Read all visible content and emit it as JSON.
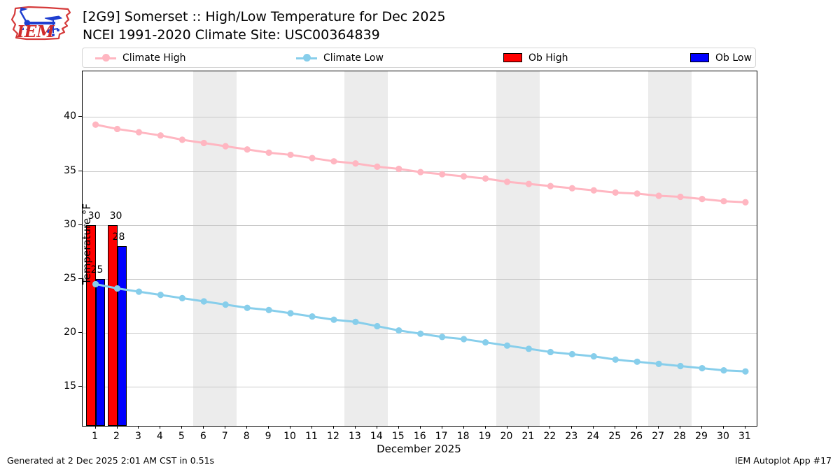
{
  "header": {
    "title": "[2G9] Somerset :: High/Low Temperature for Dec 2025",
    "subtitle": "NCEI 1991-2020 Climate Site: USC00364839",
    "logo_text": "IEM"
  },
  "legend": {
    "items": [
      {
        "label": "Climate High",
        "swatch": "line",
        "color": "#ffb6c1"
      },
      {
        "label": "Climate Low",
        "swatch": "line",
        "color": "#87ceeb"
      },
      {
        "label": "Ob High",
        "swatch": "rect",
        "color": "#ff0000"
      },
      {
        "label": "Ob Low",
        "swatch": "rect",
        "color": "#0000ff"
      }
    ]
  },
  "footer": {
    "left": "Generated at 2 Dec 2025 2:01 AM CST in 0.51s",
    "right": "IEM Autoplot App #17"
  },
  "chart_data": {
    "type": "line+bar",
    "title": "[2G9] Somerset :: High/Low Temperature for Dec 2025",
    "subtitle": "NCEI 1991-2020 Climate Site: USC00364839",
    "xlabel": "December 2025",
    "ylabel": "Temperature °F",
    "xlim": [
      0.4,
      31.52
    ],
    "ylim": [
      11.35,
      44.25
    ],
    "yticks": [
      15,
      20,
      25,
      30,
      35,
      40
    ],
    "days": [
      1,
      2,
      3,
      4,
      5,
      6,
      7,
      8,
      9,
      10,
      11,
      12,
      13,
      14,
      15,
      16,
      17,
      18,
      19,
      20,
      21,
      22,
      23,
      24,
      25,
      26,
      27,
      28,
      29,
      30,
      31
    ],
    "grid": "horizontal",
    "legend_position": "top",
    "weekend_bands": [
      [
        5.5,
        7.5
      ],
      [
        12.5,
        14.5
      ],
      [
        19.5,
        21.5
      ],
      [
        26.5,
        28.5
      ]
    ],
    "band_color": "#ececec",
    "grid_color": "#c9c9c9",
    "series": [
      {
        "name": "Climate High",
        "type": "line",
        "color": "#ffb6c1",
        "values": [
          39.3,
          38.9,
          38.6,
          38.3,
          37.9,
          37.6,
          37.3,
          37.0,
          36.7,
          36.5,
          36.2,
          35.9,
          35.7,
          35.4,
          35.2,
          34.9,
          34.7,
          34.5,
          34.3,
          34.0,
          33.8,
          33.6,
          33.4,
          33.2,
          33.0,
          32.9,
          32.7,
          32.6,
          32.4,
          32.2,
          32.1
        ]
      },
      {
        "name": "Climate Low",
        "type": "line",
        "color": "#87ceeb",
        "values": [
          24.5,
          24.1,
          23.8,
          23.5,
          23.2,
          22.9,
          22.6,
          22.3,
          22.1,
          21.8,
          21.5,
          21.2,
          21.0,
          20.6,
          20.2,
          19.9,
          19.6,
          19.4,
          19.1,
          18.8,
          18.5,
          18.2,
          18.0,
          17.8,
          17.5,
          17.3,
          17.1,
          16.9,
          16.7,
          16.5,
          16.4
        ]
      },
      {
        "name": "Ob High",
        "type": "bar",
        "color": "#ff0000",
        "points": [
          {
            "day": 1,
            "value": 30
          },
          {
            "day": 2,
            "value": 30
          }
        ]
      },
      {
        "name": "Ob Low",
        "type": "bar",
        "color": "#0000ff",
        "points": [
          {
            "day": 1,
            "value": 25
          },
          {
            "day": 2,
            "value": 28
          }
        ]
      }
    ]
  }
}
